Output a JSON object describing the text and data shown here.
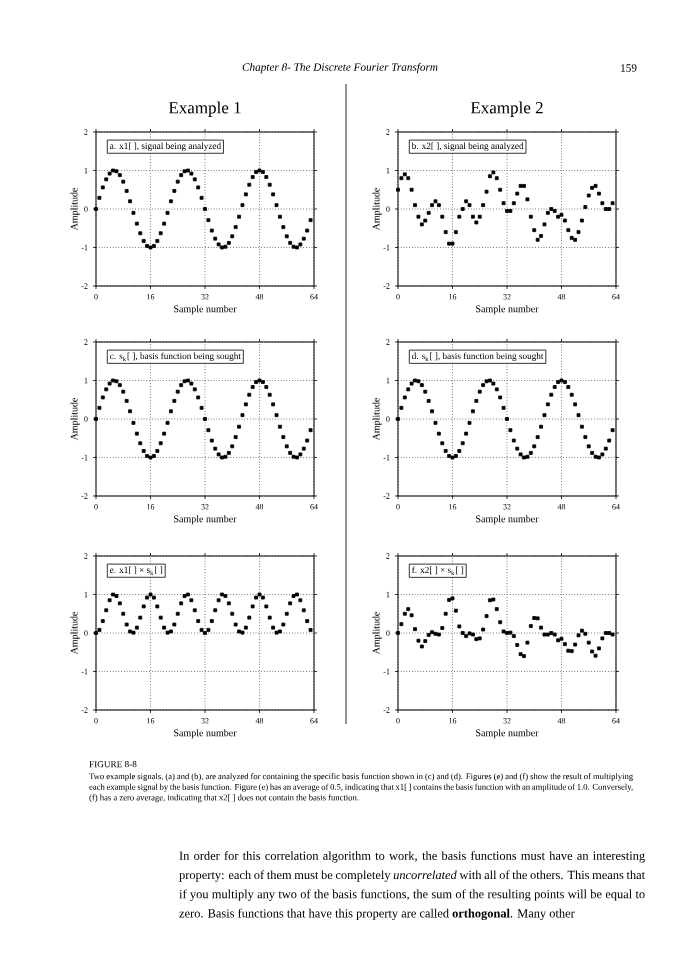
{
  "chart_data": [
    {
      "type": "scatter",
      "title": "Example 1",
      "subtitle": "a. x1[ ], signal being analyzed",
      "xlabel": "Sample number",
      "ylabel": "Amplitude",
      "color": "#000000",
      "marker": "square",
      "grid": true,
      "xlim": [
        0,
        64
      ],
      "ylim": [
        -2,
        2
      ],
      "xticks": [
        0,
        16,
        32,
        48,
        64
      ],
      "yticks": [
        -2,
        -1,
        0,
        1,
        2
      ],
      "annotations": [
        "Chapter 8- The Discrete Fourier Transform",
        "159"
      ],
      "x": [
        0,
        1,
        2,
        3,
        4,
        5,
        6,
        7,
        8,
        9,
        10,
        11,
        12,
        13,
        14,
        15,
        16,
        17,
        18,
        19,
        20,
        21,
        22,
        23,
        24,
        25,
        26,
        27,
        28,
        29,
        30,
        31,
        32,
        33,
        34,
        35,
        36,
        37,
        38,
        39,
        40,
        41,
        42,
        43,
        44,
        45,
        46,
        47,
        48,
        49,
        50,
        51,
        52,
        53,
        54,
        55,
        56,
        57,
        58,
        59,
        60,
        61,
        62,
        63
      ],
      "values": [
        0,
        0.29,
        0.56,
        0.77,
        0.92,
        1,
        0.98,
        0.88,
        0.71,
        0.47,
        0.2,
        -0.1,
        -0.38,
        -0.63,
        -0.83,
        -0.96,
        -1,
        -0.96,
        -0.83,
        -0.63,
        -0.38,
        -0.1,
        0.2,
        0.47,
        0.71,
        0.88,
        0.98,
        1,
        0.92,
        0.77,
        0.56,
        0.29,
        0,
        -0.29,
        -0.56,
        -0.77,
        -0.92,
        -1,
        -0.98,
        -0.88,
        -0.71,
        -0.47,
        -0.2,
        0.1,
        0.38,
        0.63,
        0.83,
        0.96,
        1,
        0.96,
        0.83,
        0.63,
        0.38,
        0.1,
        -0.2,
        -0.47,
        -0.71,
        -0.88,
        -0.98,
        -1,
        -0.92,
        -0.77,
        -0.56,
        -0.29
      ]
    },
    {
      "type": "scatter",
      "title": "Example 2",
      "subtitle": "b. x2[ ], signal being analyzed",
      "xlabel": "Sample number",
      "ylabel": "Amplitude",
      "color": "#000000",
      "marker": "square",
      "grid": true,
      "xlim": [
        0,
        64
      ],
      "ylim": [
        -2,
        2
      ],
      "xticks": [
        0,
        16,
        32,
        48,
        64
      ],
      "yticks": [
        -2,
        -1,
        0,
        1,
        2
      ],
      "x": [
        0,
        1,
        2,
        3,
        4,
        5,
        6,
        7,
        8,
        9,
        10,
        11,
        12,
        13,
        14,
        15,
        16,
        17,
        18,
        19,
        20,
        21,
        22,
        23,
        24,
        25,
        26,
        27,
        28,
        29,
        30,
        31,
        32,
        33,
        34,
        35,
        36,
        37,
        38,
        39,
        40,
        41,
        42,
        43,
        44,
        45,
        46,
        47,
        48,
        49,
        50,
        51,
        52,
        53,
        54,
        55,
        56,
        57,
        58,
        59,
        60,
        61,
        62,
        63
      ],
      "values": [
        0.5,
        0.8,
        0.9,
        0.8,
        0.5,
        0.1,
        -0.2,
        -0.4,
        -0.3,
        -0.1,
        0.1,
        0.2,
        0.1,
        -0.2,
        -0.6,
        -0.9,
        -0.9,
        -0.6,
        -0.2,
        0,
        0.2,
        0.1,
        -0.2,
        -0.35,
        -0.2,
        0.1,
        0.45,
        0.85,
        0.95,
        0.8,
        0.5,
        0.15,
        -0.05,
        -0.05,
        0.15,
        0.4,
        0.6,
        0.6,
        0.25,
        -0.2,
        -0.55,
        -0.8,
        -0.7,
        -0.4,
        -0.1,
        0,
        -0.05,
        -0.2,
        -0.15,
        -0.3,
        -0.55,
        -0.75,
        -0.8,
        -0.6,
        -0.3,
        0.05,
        0.35,
        0.55,
        0.6,
        0.4,
        0.15,
        0,
        0,
        0.15
      ]
    },
    {
      "type": "scatter",
      "title": "c. s$_{k}$[ ], basis function being sought",
      "xlabel": "Sample number",
      "ylabel": "Amplitude",
      "color": "#000000",
      "marker": "square",
      "grid": true,
      "xlim": [
        0,
        64
      ],
      "ylim": [
        -2,
        2
      ],
      "xticks": [
        0,
        16,
        32,
        48,
        64
      ],
      "yticks": [
        -2,
        -1,
        0,
        1,
        2
      ],
      "x": [
        0,
        1,
        2,
        3,
        4,
        5,
        6,
        7,
        8,
        9,
        10,
        11,
        12,
        13,
        14,
        15,
        16,
        17,
        18,
        19,
        20,
        21,
        22,
        23,
        24,
        25,
        26,
        27,
        28,
        29,
        30,
        31,
        32,
        33,
        34,
        35,
        36,
        37,
        38,
        39,
        40,
        41,
        42,
        43,
        44,
        45,
        46,
        47,
        48,
        49,
        50,
        51,
        52,
        53,
        54,
        55,
        56,
        57,
        58,
        59,
        60,
        61,
        62,
        63
      ],
      "values": [
        0,
        0.29,
        0.56,
        0.77,
        0.92,
        1,
        0.98,
        0.88,
        0.71,
        0.47,
        0.2,
        -0.1,
        -0.38,
        -0.63,
        -0.83,
        -0.96,
        -1,
        -0.96,
        -0.83,
        -0.63,
        -0.38,
        -0.1,
        0.2,
        0.47,
        0.71,
        0.88,
        0.98,
        1,
        0.92,
        0.77,
        0.56,
        0.29,
        0,
        -0.29,
        -0.56,
        -0.77,
        -0.92,
        -1,
        -0.98,
        -0.88,
        -0.71,
        -0.47,
        -0.2,
        0.1,
        0.38,
        0.63,
        0.83,
        0.96,
        1,
        0.96,
        0.83,
        0.63,
        0.38,
        0.1,
        -0.2,
        -0.47,
        -0.71,
        -0.88,
        -0.98,
        -1,
        -0.92,
        -0.77,
        -0.56,
        -0.29
      ]
    },
    {
      "type": "scatter",
      "title": "d. s$_{k}$[ ], basis function being sought",
      "xlabel": "Sample number",
      "ylabel": "Amplitude",
      "color": "#000000",
      "marker": "square",
      "grid": true,
      "xlim": [
        0,
        64
      ],
      "ylim": [
        -2,
        2
      ],
      "xticks": [
        0,
        16,
        32,
        48,
        64
      ],
      "yticks": [
        -2,
        -1,
        0,
        1,
        2
      ],
      "x": [
        0,
        1,
        2,
        3,
        4,
        5,
        6,
        7,
        8,
        9,
        10,
        11,
        12,
        13,
        14,
        15,
        16,
        17,
        18,
        19,
        20,
        21,
        22,
        23,
        24,
        25,
        26,
        27,
        28,
        29,
        30,
        31,
        32,
        33,
        34,
        35,
        36,
        37,
        38,
        39,
        40,
        41,
        42,
        43,
        44,
        45,
        46,
        47,
        48,
        49,
        50,
        51,
        52,
        53,
        54,
        55,
        56,
        57,
        58,
        59,
        60,
        61,
        62,
        63
      ],
      "values": [
        0,
        0.29,
        0.56,
        0.77,
        0.92,
        1,
        0.98,
        0.88,
        0.71,
        0.47,
        0.2,
        -0.1,
        -0.38,
        -0.63,
        -0.83,
        -0.96,
        -1,
        -0.96,
        -0.83,
        -0.63,
        -0.38,
        -0.1,
        0.2,
        0.47,
        0.71,
        0.88,
        0.98,
        1,
        0.92,
        0.77,
        0.56,
        0.29,
        0,
        -0.29,
        -0.56,
        -0.77,
        -0.92,
        -1,
        -0.98,
        -0.88,
        -0.71,
        -0.47,
        -0.2,
        0.1,
        0.38,
        0.63,
        0.83,
        0.96,
        1,
        0.96,
        0.83,
        0.63,
        0.38,
        0.1,
        -0.2,
        -0.47,
        -0.71,
        -0.88,
        -0.98,
        -1,
        -0.92,
        -0.77,
        -0.56,
        -0.29
      ]
    },
    {
      "type": "scatter",
      "title": "e. x1[ ] × s$_{k}$[ ]",
      "xlabel": "Sample number",
      "ylabel": "Amplitude",
      "color": "#000000",
      "marker": "square",
      "grid": true,
      "xlim": [
        0,
        64
      ],
      "ylim": [
        -2,
        2
      ],
      "xticks": [
        0,
        16,
        32,
        48,
        64
      ],
      "yticks": [
        -2,
        -1,
        0,
        1,
        2
      ],
      "x": [
        0,
        1,
        2,
        3,
        4,
        5,
        6,
        7,
        8,
        9,
        10,
        11,
        12,
        13,
        14,
        15,
        16,
        17,
        18,
        19,
        20,
        21,
        22,
        23,
        24,
        25,
        26,
        27,
        28,
        29,
        30,
        31,
        32,
        33,
        34,
        35,
        36,
        37,
        38,
        39,
        40,
        41,
        42,
        43,
        44,
        45,
        46,
        47,
        48,
        49,
        50,
        51,
        52,
        53,
        54,
        55,
        56,
        57,
        58,
        59,
        60,
        61,
        62,
        63
      ],
      "values": [
        0,
        0.08,
        0.31,
        0.59,
        0.85,
        1,
        0.96,
        0.77,
        0.5,
        0.22,
        0.04,
        0.01,
        0.14,
        0.4,
        0.69,
        0.92,
        1,
        0.92,
        0.69,
        0.4,
        0.14,
        0.01,
        0.04,
        0.22,
        0.5,
        0.77,
        0.96,
        1,
        0.85,
        0.59,
        0.31,
        0.08,
        0,
        0.08,
        0.31,
        0.59,
        0.85,
        1,
        0.96,
        0.77,
        0.5,
        0.22,
        0.04,
        0.01,
        0.14,
        0.4,
        0.69,
        0.92,
        1,
        0.92,
        0.69,
        0.4,
        0.14,
        0.01,
        0.04,
        0.22,
        0.5,
        0.77,
        0.96,
        1,
        0.85,
        0.59,
        0.31,
        0.08
      ]
    },
    {
      "type": "scatter",
      "title": "f. x2[ ] × s$_{k}$[ ]",
      "xlabel": "Sample number",
      "ylabel": "Amplitude",
      "color": "#000000",
      "marker": "square",
      "grid": true,
      "xlim": [
        0,
        64
      ],
      "ylim": [
        -2,
        2
      ],
      "xticks": [
        0,
        16,
        32,
        48,
        64
      ],
      "yticks": [
        -2,
        -1,
        0,
        1,
        2
      ],
      "annotations": [
        "FIGURE 8-8",
        "Two example signals, (a) and (b), are analyzed for containing the specific basis function shown in (c) and (d). Figures (e) and (f) show the result of multiplying each example signal by the basis function. Figure (e) has an average of 0.5, indicating that x1[ ] contains the basis function with an amplitude of 1.0. Conversely, (f) has a zero average, indicating that x2[ ] does not contain the basis function.",
        "In order for this correlation algorithm to work, the basis functions must have an interesting property: each of them must be completely *uncorrelated* with all of the others. This means that if you multiply any two of the basis functions, the sum of the resulting points will be equal to zero. Basis functions that have this property are called **orthogonal**. Many other"
      ],
      "x": [
        0,
        1,
        2,
        3,
        4,
        5,
        6,
        7,
        8,
        9,
        10,
        11,
        12,
        13,
        14,
        15,
        16,
        17,
        18,
        19,
        20,
        21,
        22,
        23,
        24,
        25,
        26,
        27,
        28,
        29,
        30,
        31,
        32,
        33,
        34,
        35,
        36,
        37,
        38,
        39,
        40,
        41,
        42,
        43,
        44,
        45,
        46,
        47,
        48,
        49,
        50,
        51,
        52,
        53,
        54,
        55,
        56,
        57,
        58,
        59,
        60,
        61,
        62,
        63
      ],
      "values": [
        0,
        0.23,
        0.5,
        0.62,
        0.46,
        0.1,
        -0.2,
        -0.35,
        -0.21,
        -0.05,
        0.02,
        -0.02,
        -0.04,
        0.13,
        0.5,
        0.86,
        0.9,
        0.58,
        0.17,
        0,
        -0.08,
        -0.01,
        -0.04,
        -0.16,
        -0.14,
        0.09,
        0.44,
        0.85,
        0.87,
        0.62,
        0.28,
        0.04,
        0,
        0.01,
        -0.08,
        -0.31,
        -0.55,
        -0.6,
        -0.25,
        0.18,
        0.39,
        0.38,
        0.14,
        -0.04,
        -0.04,
        0,
        -0.04,
        -0.19,
        -0.15,
        -0.29,
        -0.46,
        -0.47,
        -0.3,
        -0.06,
        0.06,
        -0.02,
        -0.25,
        -0.48,
        -0.59,
        -0.4,
        -0.14,
        0,
        0,
        -0.04
      ]
    }
  ]
}
